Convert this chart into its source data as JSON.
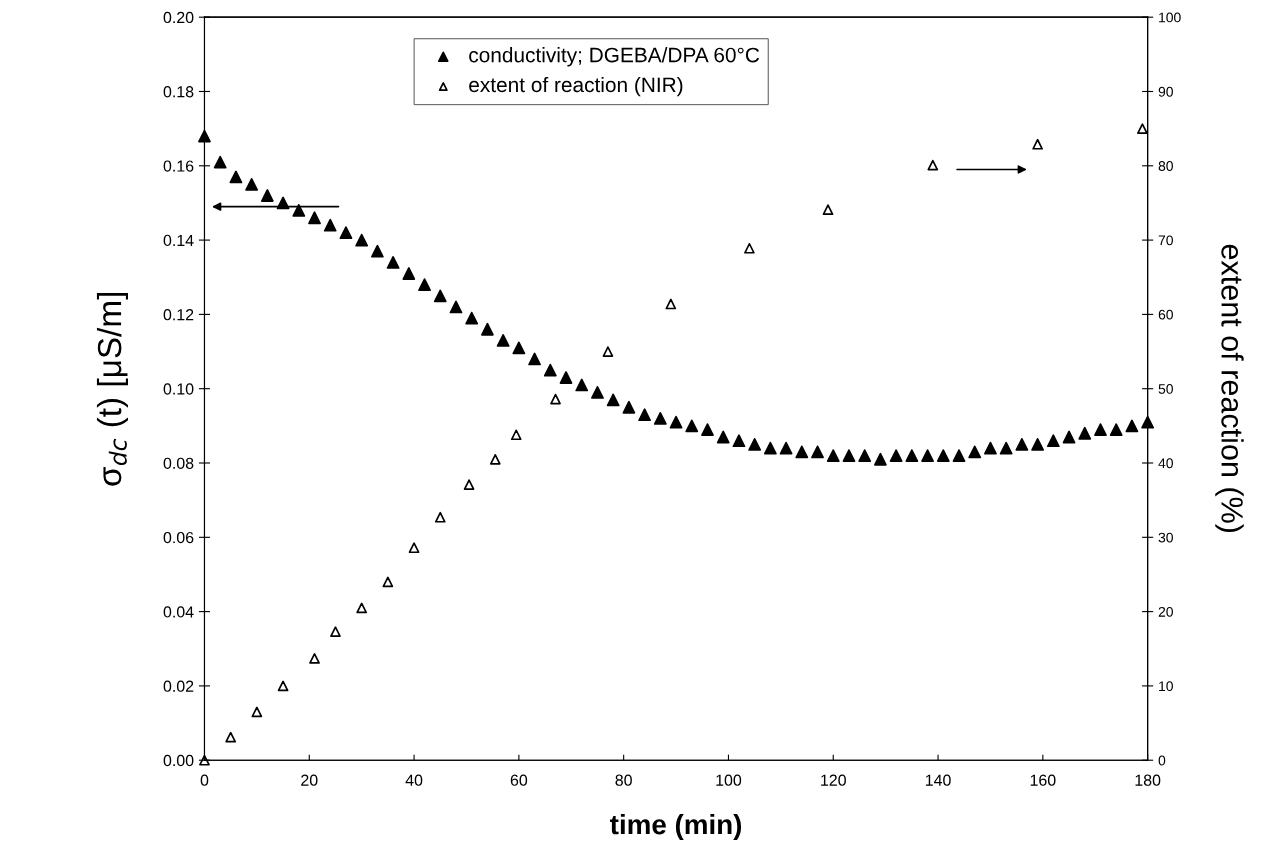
{
  "chart_data": {
    "type": "scatter",
    "xlabel": "time (min)",
    "ylabel": "σ$_{dc}$ (t) [μS/m]",
    "y2label": "extent of reaction (%)",
    "xlim": [
      0,
      180
    ],
    "xticks": [
      0,
      20,
      40,
      60,
      80,
      100,
      120,
      140,
      160,
      180
    ],
    "ylim": [
      0,
      0.2
    ],
    "yticks": [
      {
        "value": 0,
        "label": "0.00"
      },
      {
        "value": 0.02,
        "label": "0.02"
      },
      {
        "value": 0.04,
        "label": "0.04"
      },
      {
        "value": 0.06,
        "label": "0.06"
      },
      {
        "value": 0.08,
        "label": "0.08"
      },
      {
        "value": 0.1,
        "label": "0.10"
      },
      {
        "value": 0.12,
        "label": "0.12"
      },
      {
        "value": 0.14,
        "label": "0.14"
      },
      {
        "value": 0.16,
        "label": "0.16"
      },
      {
        "value": 0.18,
        "label": "0.18"
      },
      {
        "value": 0.2,
        "label": "0.20"
      }
    ],
    "y2lim": [
      0,
      100
    ],
    "y2ticks": [
      0,
      10,
      20,
      30,
      40,
      50,
      60,
      70,
      80,
      90,
      100
    ],
    "legend": "top",
    "marker": "triangle",
    "grid": false,
    "series": [
      {
        "name": "conductivity; DGEBA/DPA 60°C",
        "color": "#000000",
        "x": [
          0,
          3,
          6,
          9,
          12,
          15,
          18,
          21,
          24,
          27,
          30,
          33,
          36,
          39,
          42,
          45,
          48,
          51,
          54,
          57,
          60,
          63,
          66,
          69,
          72,
          75,
          78,
          81,
          84,
          87,
          90,
          93,
          96,
          99,
          102,
          105,
          108,
          111,
          114,
          117,
          120,
          123,
          126,
          129,
          132,
          135,
          138,
          141,
          144,
          147,
          150,
          153,
          156,
          159,
          162,
          165,
          168,
          171,
          174,
          177,
          180
        ],
        "values": [
          0.168,
          0.161,
          0.157,
          0.155,
          0.152,
          0.15,
          0.148,
          0.146,
          0.144,
          0.142,
          0.14,
          0.137,
          0.134,
          0.131,
          0.128,
          0.125,
          0.122,
          0.119,
          0.116,
          0.113,
          0.111,
          0.108,
          0.105,
          0.103,
          0.101,
          0.099,
          0.097,
          0.095,
          0.093,
          0.092,
          0.091,
          0.09,
          0.089,
          0.087,
          0.086,
          0.085,
          0.084,
          0.084,
          0.083,
          0.083,
          0.082,
          0.082,
          0.082,
          0.081,
          0.082,
          0.082,
          0.082,
          0.082,
          0.082,
          0.083,
          0.084,
          0.084,
          0.085,
          0.085,
          0.086,
          0.087,
          0.088,
          0.089,
          0.089,
          0.09,
          0.091
        ]
      },
      {
        "name": "extent of reaction (NIR)",
        "color": "#000000",
        "axis": "y2",
        "x": [
          0,
          5,
          10,
          15,
          21,
          25,
          30,
          35,
          40,
          45,
          50.5,
          55.5,
          59.5,
          67,
          77,
          89,
          104,
          119,
          139,
          159,
          179
        ],
        "values": [
          0,
          3.1,
          6.5,
          10.0,
          13.7,
          17.3,
          20.5,
          24.0,
          28.6,
          32.7,
          37.1,
          40.5,
          43.8,
          48.6,
          55.0,
          61.4,
          68.9,
          74.1,
          80.1,
          82.9,
          85.0
        ]
      }
    ]
  }
}
